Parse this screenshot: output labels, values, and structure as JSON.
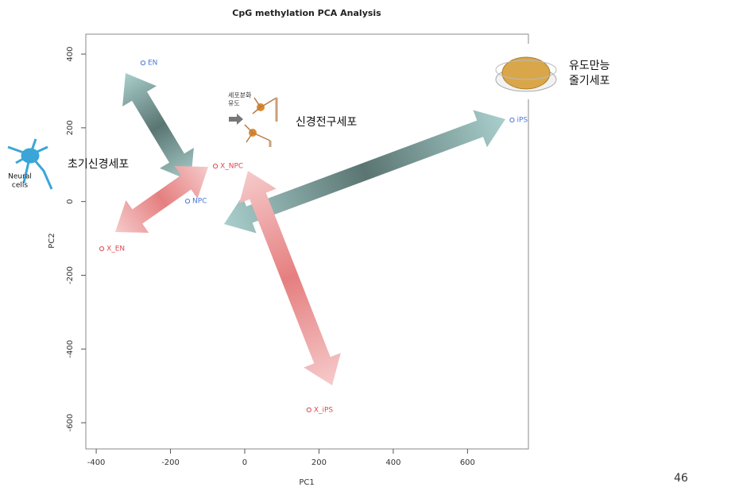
{
  "chart_data": {
    "type": "scatter",
    "title": "CpG methylation PCA Analysis",
    "x_label": "PC1",
    "y_label": "PC2",
    "xlim": [
      -428,
      764
    ],
    "ylim": [
      -671,
      454
    ],
    "xticks": [
      -400,
      -200,
      0,
      200,
      400,
      600
    ],
    "yticks": [
      -600,
      -400,
      -200,
      0,
      200,
      400
    ],
    "series": [
      {
        "color": "#4a78d8",
        "x": [
          -274,
          -154,
          720
        ],
        "values": [
          376,
          1,
          221
        ],
        "labels": [
          "EN",
          "NPC",
          "iPS"
        ]
      },
      {
        "color": "#e0484f",
        "x": [
          -79,
          -385,
          173
        ],
        "values": [
          96,
          -128,
          -565
        ],
        "labels": [
          "X_NPC",
          "X_EN",
          "X_iPS"
        ]
      }
    ]
  },
  "annotations": {
    "npc": "신경전구세포",
    "early_neuron": "초기신경세포",
    "ips_line1": "유도만능",
    "ips_line2": "줄기세포",
    "neural_line1": "Neural",
    "neural_line2": "cells",
    "diff_line1": "세포분화",
    "diff_line2": "유도"
  },
  "page_number": 46
}
